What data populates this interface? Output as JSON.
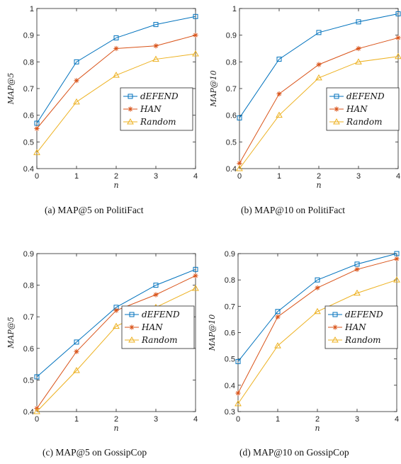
{
  "colors": {
    "dEFEND": "#0072BD",
    "HAN": "#D95319",
    "Random": "#EDB120"
  },
  "chart_data": [
    {
      "type": "line",
      "x": [
        0,
        1,
        2,
        3,
        4
      ],
      "xlabel": "n",
      "ylabel": "MAP@5",
      "ylim": [
        0.4,
        1.0
      ],
      "yticks": [
        "0.4",
        "0.5",
        "0.6",
        "0.7",
        "0.8",
        "0.9",
        "1"
      ],
      "xticks": [
        "0",
        "1",
        "2",
        "3",
        "4"
      ],
      "legend_position": "center-right",
      "caption": "(a)  MAP@5 on PolitiFact",
      "series": [
        {
          "name": "dEFEND",
          "marker": "square",
          "values": [
            0.57,
            0.8,
            0.89,
            0.94,
            0.97
          ]
        },
        {
          "name": "HAN",
          "marker": "asterisk",
          "values": [
            0.55,
            0.73,
            0.85,
            0.86,
            0.9
          ]
        },
        {
          "name": "Random",
          "marker": "triangle",
          "values": [
            0.46,
            0.65,
            0.75,
            0.81,
            0.83
          ]
        }
      ]
    },
    {
      "type": "line",
      "x": [
        0,
        1,
        2,
        3,
        4
      ],
      "xlabel": "n",
      "ylabel": "MAP@10",
      "ylim": [
        0.4,
        1.0
      ],
      "yticks": [
        "0.4",
        "0.5",
        "0.6",
        "0.7",
        "0.8",
        "0.9",
        "1"
      ],
      "xticks": [
        "0",
        "1",
        "2",
        "3",
        "4"
      ],
      "legend_position": "center-right",
      "caption": "(b)  MAP@10 on PolitiFact",
      "series": [
        {
          "name": "dEFEND",
          "marker": "square",
          "values": [
            0.59,
            0.81,
            0.91,
            0.95,
            0.98
          ]
        },
        {
          "name": "HAN",
          "marker": "asterisk",
          "values": [
            0.42,
            0.68,
            0.79,
            0.85,
            0.89
          ]
        },
        {
          "name": "Random",
          "marker": "triangle",
          "values": [
            0.4,
            0.6,
            0.74,
            0.8,
            0.82
          ]
        }
      ]
    },
    {
      "type": "line",
      "x": [
        0,
        1,
        2,
        3,
        4
      ],
      "xlabel": "n",
      "ylabel": "MAP@5",
      "ylim": [
        0.4,
        0.9
      ],
      "yticks": [
        "0.4",
        "0.5",
        "0.6",
        "0.7",
        "0.8",
        "0.9"
      ],
      "xticks": [
        "0",
        "1",
        "2",
        "3",
        "4"
      ],
      "legend_position": "center-right",
      "caption": "(c)  MAP@5 on GossipCop",
      "series": [
        {
          "name": "dEFEND",
          "marker": "square",
          "values": [
            0.51,
            0.62,
            0.73,
            0.8,
            0.85
          ]
        },
        {
          "name": "HAN",
          "marker": "asterisk",
          "values": [
            0.41,
            0.59,
            0.72,
            0.77,
            0.83
          ]
        },
        {
          "name": "Random",
          "marker": "triangle",
          "values": [
            0.4,
            0.53,
            0.67,
            0.73,
            0.79
          ]
        }
      ]
    },
    {
      "type": "line",
      "x": [
        0,
        1,
        2,
        3,
        4
      ],
      "xlabel": "n",
      "ylabel": "MAP@10",
      "ylim": [
        0.3,
        0.9
      ],
      "yticks": [
        "0.3",
        "0.4",
        "0.5",
        "0.6",
        "0.7",
        "0.8",
        "0.9"
      ],
      "xticks": [
        "0",
        "1",
        "2",
        "3",
        "4"
      ],
      "legend_position": "center-right",
      "caption": "(d)  MAP@10 on GossipCop",
      "series": [
        {
          "name": "dEFEND",
          "marker": "square",
          "values": [
            0.49,
            0.68,
            0.8,
            0.86,
            0.9
          ]
        },
        {
          "name": "HAN",
          "marker": "asterisk",
          "values": [
            0.37,
            0.66,
            0.77,
            0.84,
            0.88
          ]
        },
        {
          "name": "Random",
          "marker": "triangle",
          "values": [
            0.33,
            0.55,
            0.68,
            0.75,
            0.8
          ]
        }
      ]
    }
  ]
}
